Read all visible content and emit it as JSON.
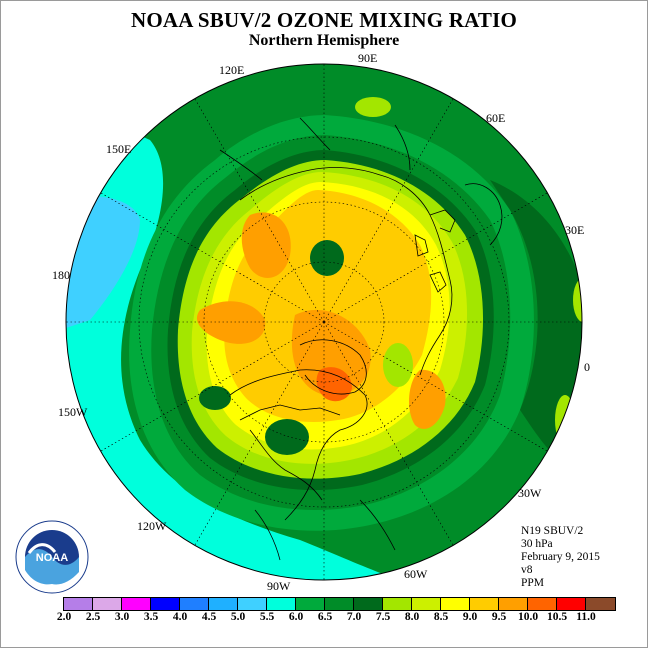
{
  "header": {
    "title": "NOAA SBUV/2 OZONE MIXING RATIO",
    "subtitle": "Northern Hemisphere"
  },
  "map_labels": {
    "lon_90e": "90E",
    "lon_60e": "60E",
    "lon_30e": "30E",
    "lon_0": "0",
    "lon_30w": "30W",
    "lon_60w": "60W",
    "lon_90w": "90W",
    "lon_120w": "120W",
    "lon_150w": "150W",
    "lon_180": "180",
    "lon_150e": "150E",
    "lon_120e": "120E"
  },
  "info": {
    "satellite": "N19 SBUV/2",
    "level": "30 hPa",
    "date": "February 9, 2015",
    "version": "v8",
    "unit": "PPM"
  },
  "logo": {
    "text": "NOAA",
    "icon": "noaa-logo"
  },
  "colorbar": {
    "colors": [
      "#b57ee8",
      "#dca8e8",
      "#ff00ff",
      "#0000ff",
      "#1f7fff",
      "#1fb0ff",
      "#3fd0ff",
      "#00ffdc",
      "#00aa3c",
      "#008c28",
      "#006a1c",
      "#a3e600",
      "#ccf000",
      "#ffff00",
      "#ffcc00",
      "#ff9f00",
      "#ff6400",
      "#ff0000",
      "#8b4a2a"
    ],
    "ticks": [
      "2.0",
      "2.5",
      "3.0",
      "3.5",
      "4.0",
      "4.5",
      "5.0",
      "5.5",
      "6.0",
      "6.5",
      "7.0",
      "7.5",
      "8.0",
      "8.5",
      "9.0",
      "9.5",
      "10.0",
      "10.5",
      "11.0"
    ]
  }
}
